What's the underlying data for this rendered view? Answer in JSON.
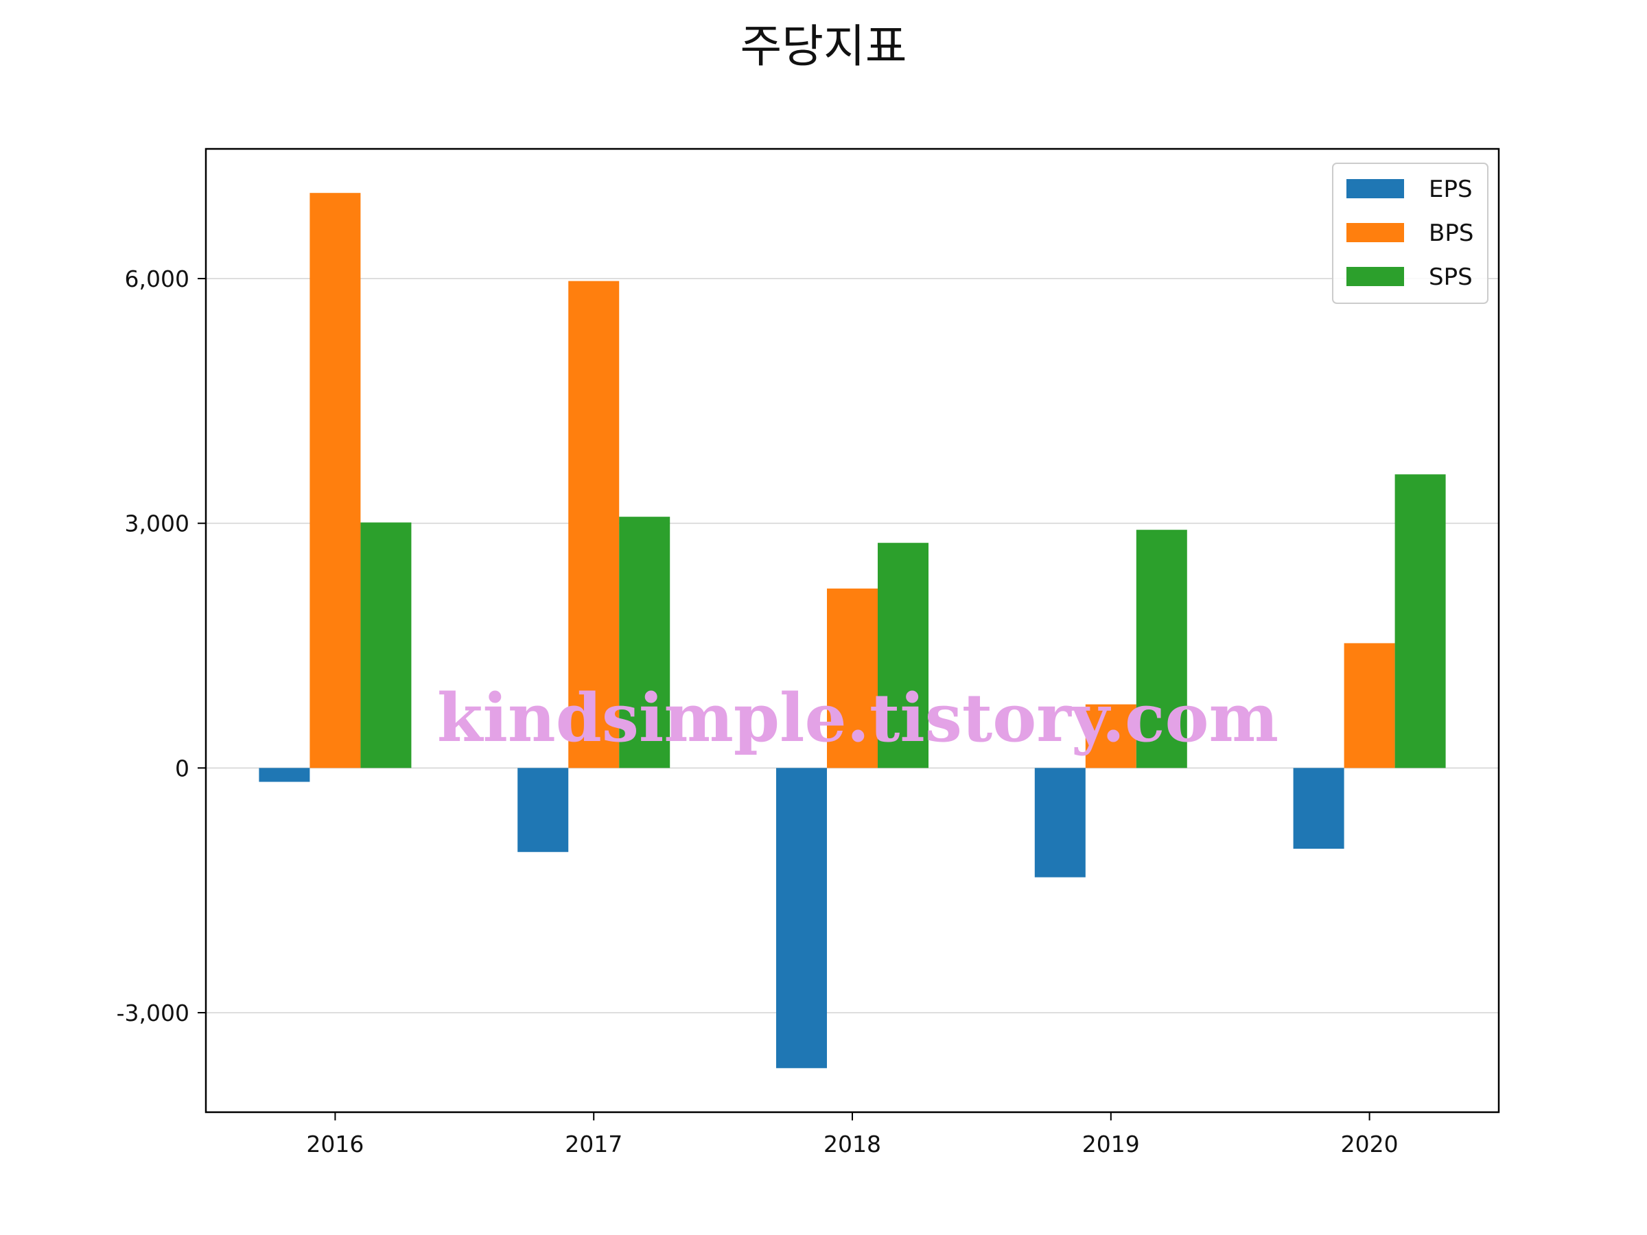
{
  "chart_data": {
    "type": "bar",
    "title": "주당지표",
    "xlabel": "",
    "ylabel": "",
    "categories": [
      "2016",
      "2017",
      "2018",
      "2019",
      "2020"
    ],
    "series": [
      {
        "name": "EPS",
        "color": "#1f77b4",
        "values": [
          -170,
          -1030,
          -3680,
          -1340,
          -990
        ]
      },
      {
        "name": "BPS",
        "color": "#ff7f0e",
        "values": [
          7050,
          5970,
          2200,
          780,
          1530
        ]
      },
      {
        "name": "SPS",
        "color": "#2ca02c",
        "values": [
          3010,
          3080,
          2760,
          2920,
          3600
        ]
      }
    ],
    "ylim": [
      -4220,
      7590
    ],
    "yticks": [
      -3000,
      0,
      3000,
      6000
    ],
    "ytick_labels": [
      "-3,000",
      "0",
      "3,000",
      "6,000"
    ],
    "grid": true,
    "legend_position": "top-right",
    "watermark": "kindsimple.tistory.com"
  }
}
